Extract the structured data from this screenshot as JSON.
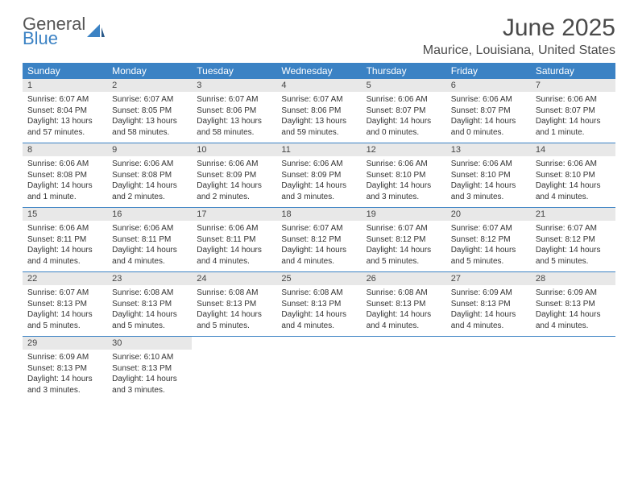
{
  "logo": {
    "line1": "General",
    "line2": "Blue",
    "color_general": "#555555",
    "color_blue": "#3b82c4",
    "icon_color": "#3b82c4"
  },
  "title": "June 2025",
  "location": "Maurice, Louisiana, United States",
  "header_bg": "#3b82c4",
  "daynum_bg": "#e8e8e8",
  "rule_color": "#3b82c4",
  "weekdays": [
    "Sunday",
    "Monday",
    "Tuesday",
    "Wednesday",
    "Thursday",
    "Friday",
    "Saturday"
  ],
  "weeks": [
    [
      {
        "n": "1",
        "sunrise": "Sunrise: 6:07 AM",
        "sunset": "Sunset: 8:04 PM",
        "daylight": "Daylight: 13 hours and 57 minutes."
      },
      {
        "n": "2",
        "sunrise": "Sunrise: 6:07 AM",
        "sunset": "Sunset: 8:05 PM",
        "daylight": "Daylight: 13 hours and 58 minutes."
      },
      {
        "n": "3",
        "sunrise": "Sunrise: 6:07 AM",
        "sunset": "Sunset: 8:06 PM",
        "daylight": "Daylight: 13 hours and 58 minutes."
      },
      {
        "n": "4",
        "sunrise": "Sunrise: 6:07 AM",
        "sunset": "Sunset: 8:06 PM",
        "daylight": "Daylight: 13 hours and 59 minutes."
      },
      {
        "n": "5",
        "sunrise": "Sunrise: 6:06 AM",
        "sunset": "Sunset: 8:07 PM",
        "daylight": "Daylight: 14 hours and 0 minutes."
      },
      {
        "n": "6",
        "sunrise": "Sunrise: 6:06 AM",
        "sunset": "Sunset: 8:07 PM",
        "daylight": "Daylight: 14 hours and 0 minutes."
      },
      {
        "n": "7",
        "sunrise": "Sunrise: 6:06 AM",
        "sunset": "Sunset: 8:07 PM",
        "daylight": "Daylight: 14 hours and 1 minute."
      }
    ],
    [
      {
        "n": "8",
        "sunrise": "Sunrise: 6:06 AM",
        "sunset": "Sunset: 8:08 PM",
        "daylight": "Daylight: 14 hours and 1 minute."
      },
      {
        "n": "9",
        "sunrise": "Sunrise: 6:06 AM",
        "sunset": "Sunset: 8:08 PM",
        "daylight": "Daylight: 14 hours and 2 minutes."
      },
      {
        "n": "10",
        "sunrise": "Sunrise: 6:06 AM",
        "sunset": "Sunset: 8:09 PM",
        "daylight": "Daylight: 14 hours and 2 minutes."
      },
      {
        "n": "11",
        "sunrise": "Sunrise: 6:06 AM",
        "sunset": "Sunset: 8:09 PM",
        "daylight": "Daylight: 14 hours and 3 minutes."
      },
      {
        "n": "12",
        "sunrise": "Sunrise: 6:06 AM",
        "sunset": "Sunset: 8:10 PM",
        "daylight": "Daylight: 14 hours and 3 minutes."
      },
      {
        "n": "13",
        "sunrise": "Sunrise: 6:06 AM",
        "sunset": "Sunset: 8:10 PM",
        "daylight": "Daylight: 14 hours and 3 minutes."
      },
      {
        "n": "14",
        "sunrise": "Sunrise: 6:06 AM",
        "sunset": "Sunset: 8:10 PM",
        "daylight": "Daylight: 14 hours and 4 minutes."
      }
    ],
    [
      {
        "n": "15",
        "sunrise": "Sunrise: 6:06 AM",
        "sunset": "Sunset: 8:11 PM",
        "daylight": "Daylight: 14 hours and 4 minutes."
      },
      {
        "n": "16",
        "sunrise": "Sunrise: 6:06 AM",
        "sunset": "Sunset: 8:11 PM",
        "daylight": "Daylight: 14 hours and 4 minutes."
      },
      {
        "n": "17",
        "sunrise": "Sunrise: 6:06 AM",
        "sunset": "Sunset: 8:11 PM",
        "daylight": "Daylight: 14 hours and 4 minutes."
      },
      {
        "n": "18",
        "sunrise": "Sunrise: 6:07 AM",
        "sunset": "Sunset: 8:12 PM",
        "daylight": "Daylight: 14 hours and 4 minutes."
      },
      {
        "n": "19",
        "sunrise": "Sunrise: 6:07 AM",
        "sunset": "Sunset: 8:12 PM",
        "daylight": "Daylight: 14 hours and 5 minutes."
      },
      {
        "n": "20",
        "sunrise": "Sunrise: 6:07 AM",
        "sunset": "Sunset: 8:12 PM",
        "daylight": "Daylight: 14 hours and 5 minutes."
      },
      {
        "n": "21",
        "sunrise": "Sunrise: 6:07 AM",
        "sunset": "Sunset: 8:12 PM",
        "daylight": "Daylight: 14 hours and 5 minutes."
      }
    ],
    [
      {
        "n": "22",
        "sunrise": "Sunrise: 6:07 AM",
        "sunset": "Sunset: 8:13 PM",
        "daylight": "Daylight: 14 hours and 5 minutes."
      },
      {
        "n": "23",
        "sunrise": "Sunrise: 6:08 AM",
        "sunset": "Sunset: 8:13 PM",
        "daylight": "Daylight: 14 hours and 5 minutes."
      },
      {
        "n": "24",
        "sunrise": "Sunrise: 6:08 AM",
        "sunset": "Sunset: 8:13 PM",
        "daylight": "Daylight: 14 hours and 5 minutes."
      },
      {
        "n": "25",
        "sunrise": "Sunrise: 6:08 AM",
        "sunset": "Sunset: 8:13 PM",
        "daylight": "Daylight: 14 hours and 4 minutes."
      },
      {
        "n": "26",
        "sunrise": "Sunrise: 6:08 AM",
        "sunset": "Sunset: 8:13 PM",
        "daylight": "Daylight: 14 hours and 4 minutes."
      },
      {
        "n": "27",
        "sunrise": "Sunrise: 6:09 AM",
        "sunset": "Sunset: 8:13 PM",
        "daylight": "Daylight: 14 hours and 4 minutes."
      },
      {
        "n": "28",
        "sunrise": "Sunrise: 6:09 AM",
        "sunset": "Sunset: 8:13 PM",
        "daylight": "Daylight: 14 hours and 4 minutes."
      }
    ],
    [
      {
        "n": "29",
        "sunrise": "Sunrise: 6:09 AM",
        "sunset": "Sunset: 8:13 PM",
        "daylight": "Daylight: 14 hours and 3 minutes."
      },
      {
        "n": "30",
        "sunrise": "Sunrise: 6:10 AM",
        "sunset": "Sunset: 8:13 PM",
        "daylight": "Daylight: 14 hours and 3 minutes."
      },
      null,
      null,
      null,
      null,
      null
    ]
  ]
}
